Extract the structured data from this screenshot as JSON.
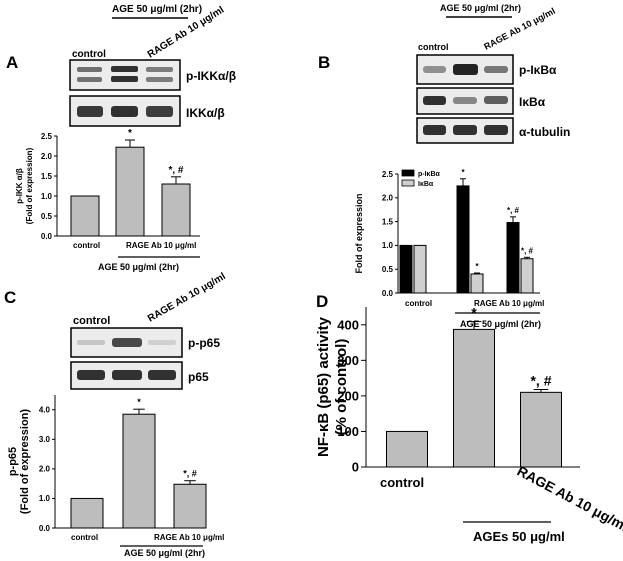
{
  "panels": [
    {
      "letter": "A",
      "header_label": "AGE 50 μg/ml (2hr)",
      "lane_labels": [
        "control",
        "RAGE Ab 10 μg/ml"
      ],
      "blots": [
        {
          "label": "p-IKKα/β",
          "bands": [
            0.62,
            0.85,
            0.55
          ]
        },
        {
          "label": "IKKα/β",
          "bands": [
            0.82,
            0.86,
            0.8
          ]
        }
      ]
    },
    {
      "letter": "B",
      "header_label": "AGE 50 μg/ml (2hr)",
      "lane_labels": [
        "control",
        "RAGE Ab 10 μg/ml"
      ],
      "blots": [
        {
          "label": "p-IκBα",
          "bands": [
            0.45,
            0.92,
            0.58
          ]
        },
        {
          "label": "IκBα",
          "bands": [
            0.85,
            0.5,
            0.7
          ]
        },
        {
          "label": "α-tubulin",
          "bands": [
            0.85,
            0.85,
            0.85
          ]
        }
      ]
    },
    {
      "letter": "C",
      "header_label": "",
      "lane_labels": [
        "control",
        "RAGE Ab 10 μg/ml"
      ],
      "blots": [
        {
          "label": "p-p65",
          "bands": [
            0.2,
            0.75,
            0.15
          ]
        },
        {
          "label": "p65",
          "bands": [
            0.85,
            0.85,
            0.85
          ]
        }
      ]
    },
    {
      "letter": "D",
      "header_label": "",
      "lane_labels": [],
      "blots": []
    }
  ],
  "chart_data": [
    {
      "panel": "A",
      "type": "bar",
      "categories": [
        "control",
        "AGE",
        "AGE + RAGE Ab"
      ],
      "x_tick_labels": [
        "control",
        "RAGE Ab 10 μg/ml"
      ],
      "group_label": "AGE 50 μg/ml (2hr)",
      "ylabel": [
        "p-IKK α/β",
        "(Fold of expression)"
      ],
      "ylim": [
        0,
        2.5
      ],
      "yticks": [
        "0.0",
        "0.5",
        "1.0",
        "1.5",
        "2.0",
        "2.5"
      ],
      "series": [
        {
          "values": [
            1.0,
            2.22,
            1.3
          ],
          "errors": [
            0,
            0.18,
            0.18
          ],
          "color": "#bdbdbd"
        }
      ],
      "annotations": [
        "",
        "*",
        "*, #"
      ]
    },
    {
      "panel": "B",
      "type": "bar",
      "categories": [
        "control",
        "AGE",
        "AGE + RAGE Ab"
      ],
      "x_tick_labels": [
        "control",
        "RAGE Ab 10 μg/ml"
      ],
      "group_label": "AGE 50 μg/ml (2hr)",
      "ylabel": [
        "Fold of expression"
      ],
      "ylim": [
        0,
        2.5
      ],
      "yticks": [
        "0.0",
        "0.5",
        "1.0",
        "1.5",
        "2.0",
        "2.5"
      ],
      "legend": "top-left",
      "series": [
        {
          "name": "p-IκBα",
          "values": [
            1.0,
            2.25,
            1.48
          ],
          "errors": [
            0,
            0.15,
            0.12
          ],
          "color": "#000000",
          "annotations": [
            "",
            "*",
            "*, #"
          ]
        },
        {
          "name": "IκBα",
          "values": [
            1.0,
            0.4,
            0.72
          ],
          "errors": [
            0,
            0.02,
            0.03
          ],
          "color": "#cfcfcf",
          "annotations": [
            "",
            "*",
            "*, #"
          ]
        }
      ]
    },
    {
      "panel": "C",
      "type": "bar",
      "categories": [
        "control",
        "AGE",
        "AGE + RAGE Ab"
      ],
      "x_tick_labels": [
        "control",
        "RAGE Ab 10 μg/ml"
      ],
      "group_label": "AGE 50 μg/ml (2hr)",
      "ylabel": [
        "p-p65",
        "(Fold of expression)"
      ],
      "ylim": [
        0,
        4.5
      ],
      "yticks": [
        "0.0",
        "1.0",
        "2.0",
        "3.0",
        "4.0"
      ],
      "series": [
        {
          "values": [
            1.0,
            3.85,
            1.48
          ],
          "errors": [
            0,
            0.17,
            0.12
          ],
          "color": "#bdbdbd"
        }
      ],
      "annotations": [
        "",
        "*",
        "*, #"
      ]
    },
    {
      "panel": "D",
      "type": "bar",
      "categories": [
        "control",
        "AGEs",
        "AGEs + RAGE Ab"
      ],
      "x_tick_labels": [
        "control",
        "RAGE Ab 10 μg/ml"
      ],
      "group_label": "AGEs 50 μg/ml",
      "ylabel": [
        "NF-κB (p65) activity",
        "(% of control)"
      ],
      "ylim": [
        0,
        450
      ],
      "yticks": [
        "0",
        "100",
        "200",
        "300",
        "400"
      ],
      "series": [
        {
          "values": [
            100,
            387,
            210
          ],
          "errors": [
            0,
            22,
            8
          ],
          "color": "#bdbdbd"
        }
      ],
      "annotations": [
        "",
        "*",
        "*, #"
      ]
    }
  ]
}
